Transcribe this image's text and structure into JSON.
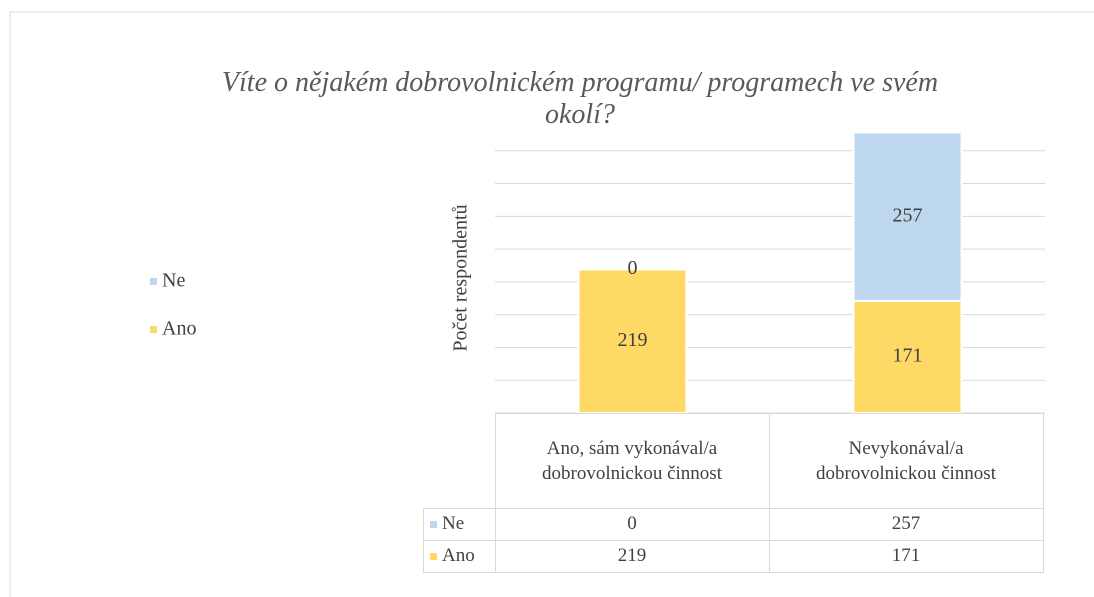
{
  "chart_data": {
    "type": "stacked_bar",
    "title": "Víte o nějakém dobrovolnickém programu/ programech ve svém okolí?",
    "y_label": "Počet respondentů",
    "categories": [
      "Ano, sám vykonával/a dobrovolnickou činnost",
      "Nevykonával/a dobrovolnickou činnost"
    ],
    "series": [
      {
        "name": "Ne",
        "color": "#bdd7ee",
        "values": [
          0,
          257
        ]
      },
      {
        "name": "Ano",
        "color": "#ffd966",
        "values": [
          219,
          171
        ]
      }
    ],
    "ylim": [
      0,
      450
    ],
    "yticks": [
      0,
      50,
      100,
      150,
      200,
      250,
      300,
      350,
      400
    ],
    "grid": true,
    "legend": "left",
    "data_table": true
  }
}
